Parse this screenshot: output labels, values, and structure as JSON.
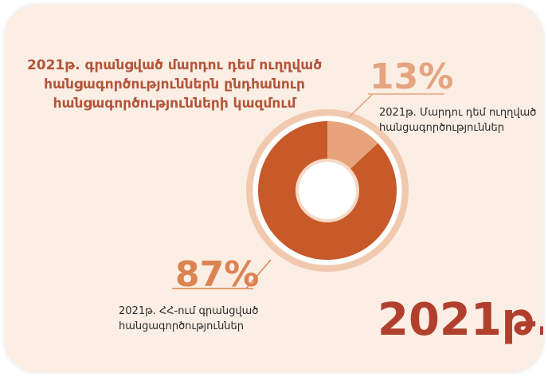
{
  "title": "2021թ. գրանցված մարդու դեմ ուղղված հանցագործություններն ընդհանուր հանցագործությունների կազմում",
  "year": "2021թ.",
  "colors": {
    "background": "#fbeee4",
    "primary_slice": "#c85a2a",
    "secondary_slice": "#e7a47b",
    "ring": "#f1c9ae",
    "title": "#b3553a",
    "year": "#b0402d"
  },
  "chart_data": {
    "type": "pie",
    "title": "2021թ. գրանցված մարդու դեմ ուղղված հանցագործություններն ընդհանուր հանցագործությունների կազմում",
    "slices": [
      {
        "name": "2021թ. Մարդու դեմ ուղղված հանցագործություններ",
        "value": 13,
        "label": "13%",
        "color": "#e7a47b"
      },
      {
        "name": "2021թ. ՀՀ-ում գրանցված հանցագործություններ",
        "value": 87,
        "label": "87%",
        "color": "#c85a2a"
      }
    ]
  },
  "labels": {
    "pct_13": "13%",
    "desc_13": "2021թ. Մարդու դեմ ուղղված հանցագործություններ",
    "pct_87": "87%",
    "desc_87": "2021թ. ՀՀ-ում գրանցված հանցագործություններ"
  }
}
